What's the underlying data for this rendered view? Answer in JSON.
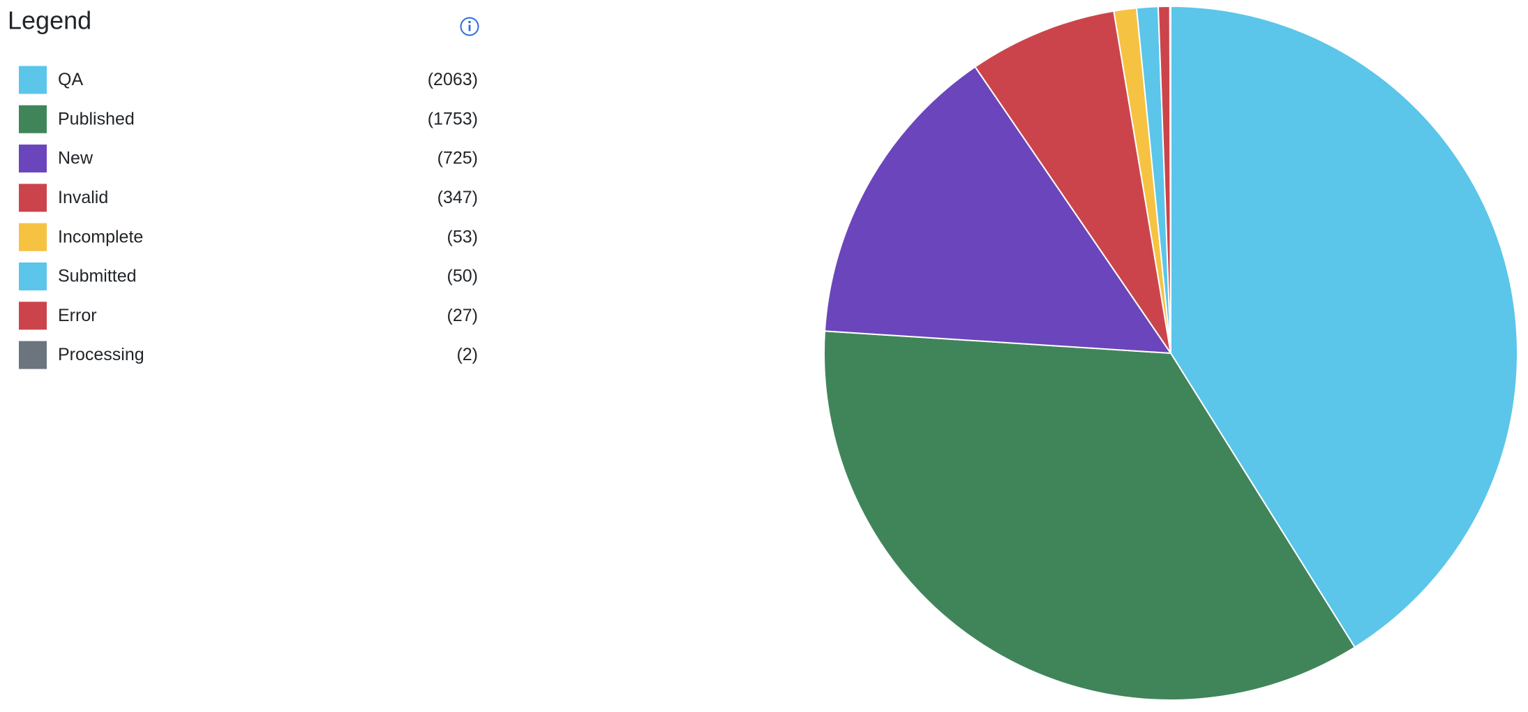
{
  "chart_data": {
    "type": "pie",
    "legend_title": "Legend",
    "categories": [
      "QA",
      "Published",
      "New",
      "Invalid",
      "Incomplete",
      "Submitted",
      "Error",
      "Processing"
    ],
    "values": [
      2063,
      1753,
      725,
      347,
      53,
      50,
      27,
      2
    ],
    "value_labels": [
      "(2063)",
      "(1753)",
      "(725)",
      "(347)",
      "(53)",
      "(50)",
      "(27)",
      "(2)"
    ],
    "colors": [
      "#5bc5ea",
      "#40855a",
      "#6b45bb",
      "#cc444b",
      "#f5c242",
      "#5bc5ea",
      "#cc444b",
      "#6c757d"
    ],
    "legend": "left"
  }
}
